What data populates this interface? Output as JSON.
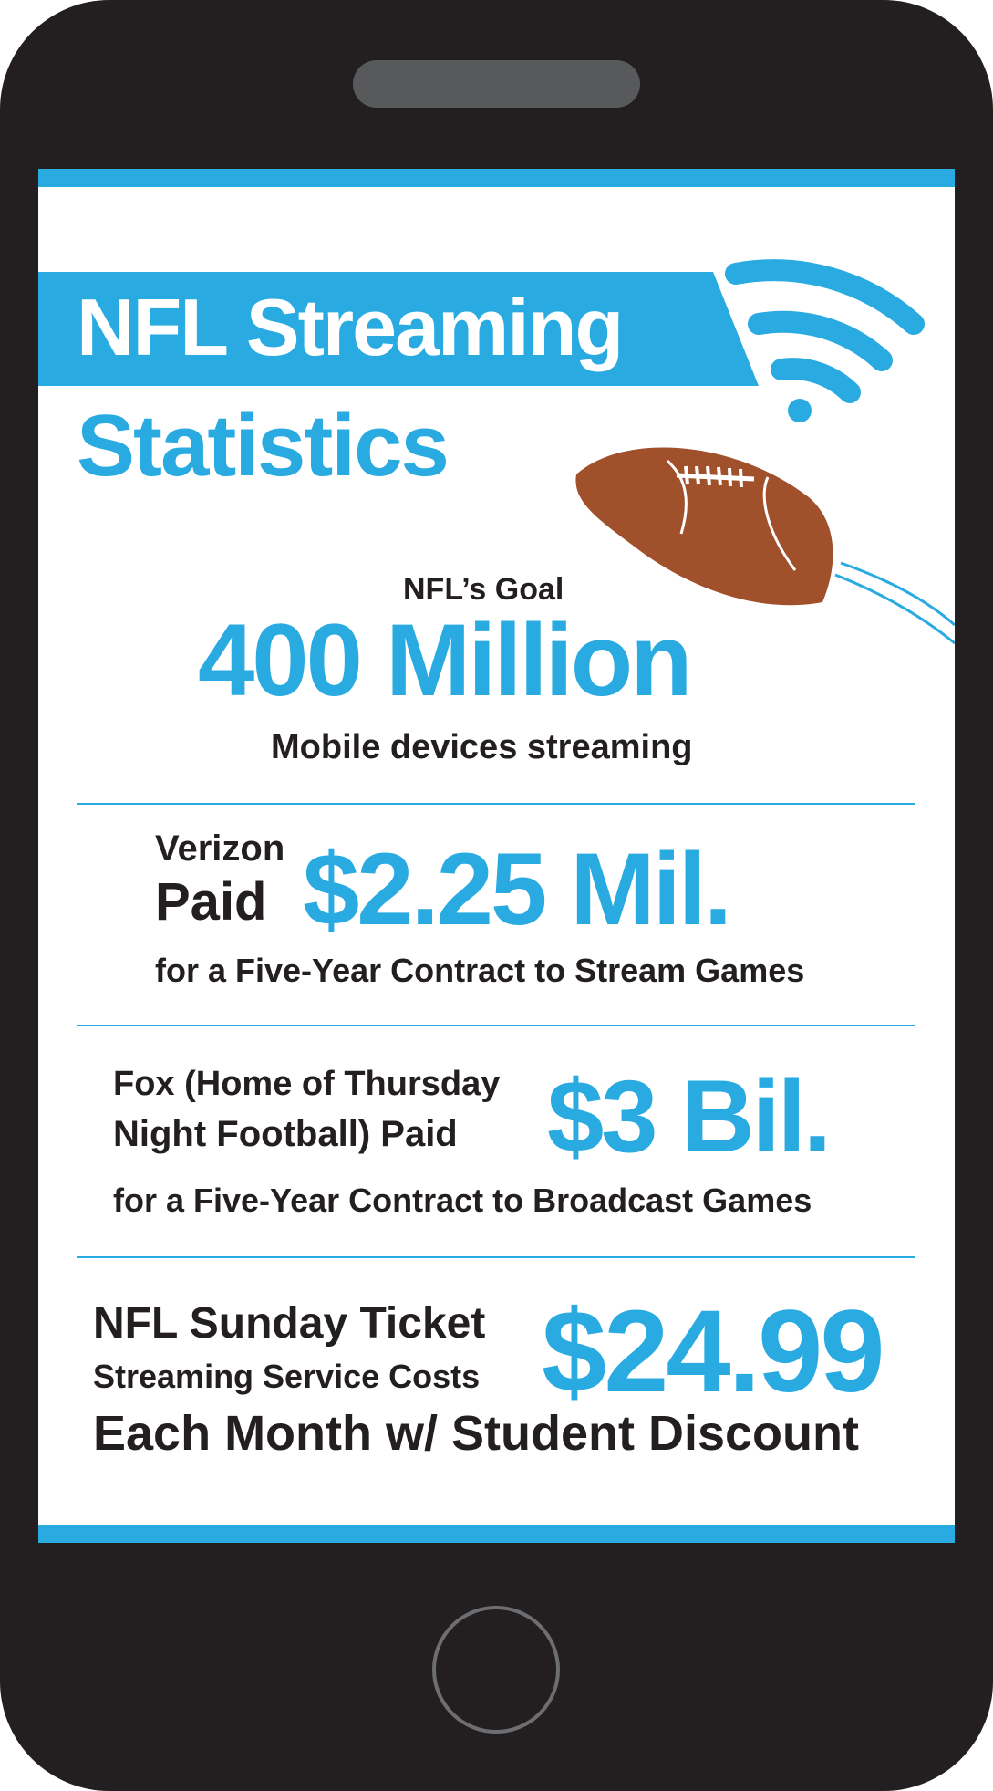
{
  "title": {
    "line1": "NFL Streaming",
    "line2": "Statistics"
  },
  "goal": {
    "label": "NFL’s Goal",
    "value": "400 Million",
    "caption": "Mobile devices streaming"
  },
  "verizon": {
    "line1": "Verizon",
    "line2": "Paid",
    "value": "$2.25 Mil.",
    "caption": "for a Five-Year Contract to Stream Games"
  },
  "fox": {
    "line1": "Fox (Home of Thursday",
    "line2": "Night Football) Paid",
    "value": "$3 Bil.",
    "caption": "for a Five-Year Contract to Broadcast Games"
  },
  "sunday_ticket": {
    "line1": "NFL Sunday Ticket",
    "line2": "Streaming Service Costs",
    "value": "$24.99",
    "caption": "Each Month w/ Student Discount"
  },
  "colors": {
    "accent_blue": "#29abe2",
    "phone_body": "#231f20",
    "football": "#a0502a",
    "text_dark": "#231f20"
  },
  "icons": [
    "wifi-icon",
    "football-icon",
    "home-button-icon"
  ]
}
